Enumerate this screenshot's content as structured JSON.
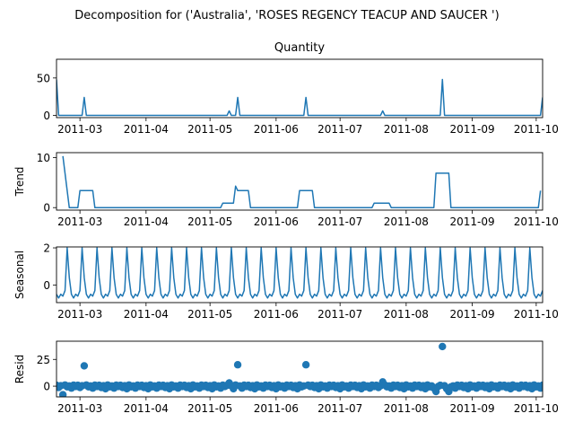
{
  "figure": {
    "suptitle": "Decomposition for ('Australia', 'ROSES REGENCY TEACUP AND SAUCER ')"
  },
  "chart_data": [
    {
      "type": "line",
      "title": "Quantity",
      "ylabel": "",
      "xlim": [
        "2011-02-18",
        "2011-10-04"
      ],
      "ylim": [
        -3,
        75
      ],
      "yticks": [
        0,
        50
      ],
      "xticks": [
        "2011-03-01",
        "2011-04-01",
        "2011-05-01",
        "2011-06-01",
        "2011-07-01",
        "2011-08-01",
        "2011-09-01",
        "2011-10-01"
      ],
      "xtick_labels": [
        "2011-03",
        "2011-04",
        "2011-05",
        "2011-06",
        "2011-07",
        "2011-08",
        "2011-09",
        "2011-10"
      ],
      "color": "#1f77b4",
      "series": [
        {
          "points": [
            [
              "2011-02-18",
              48
            ],
            [
              "2011-02-19",
              0
            ],
            [
              "2011-03-02",
              0
            ],
            [
              "2011-03-03",
              24
            ],
            [
              "2011-03-04",
              0
            ],
            [
              "2011-05-09",
              0
            ],
            [
              "2011-05-10",
              6
            ],
            [
              "2011-05-11",
              0
            ],
            [
              "2011-05-13",
              0
            ],
            [
              "2011-05-14",
              24
            ],
            [
              "2011-05-15",
              0
            ],
            [
              "2011-06-14",
              0
            ],
            [
              "2011-06-15",
              24
            ],
            [
              "2011-06-16",
              0
            ],
            [
              "2011-07-20",
              0
            ],
            [
              "2011-07-21",
              6
            ],
            [
              "2011-07-22",
              0
            ],
            [
              "2011-08-17",
              0
            ],
            [
              "2011-08-18",
              48
            ],
            [
              "2011-08-19",
              0
            ],
            [
              "2011-10-03",
              0
            ],
            [
              "2011-10-04",
              24
            ]
          ]
        }
      ]
    },
    {
      "type": "line",
      "title": "",
      "ylabel": "Trend",
      "xlim": [
        "2011-02-18",
        "2011-10-04"
      ],
      "ylim": [
        -0.5,
        11
      ],
      "yticks": [
        0,
        10
      ],
      "xticks": [
        "2011-03-01",
        "2011-04-01",
        "2011-05-01",
        "2011-06-01",
        "2011-07-01",
        "2011-08-01",
        "2011-09-01",
        "2011-10-01"
      ],
      "xtick_labels": [
        "2011-03",
        "2011-04",
        "2011-05",
        "2011-06",
        "2011-07",
        "2011-08",
        "2011-09",
        "2011-10"
      ],
      "color": "#1f77b4",
      "series": [
        {
          "points": [
            [
              "2011-02-21",
              10.3
            ],
            [
              "2011-02-24",
              0
            ],
            [
              "2011-02-28",
              0
            ],
            [
              "2011-03-01",
              3.4
            ],
            [
              "2011-03-07",
              3.4
            ],
            [
              "2011-03-08",
              0
            ],
            [
              "2011-05-06",
              0
            ],
            [
              "2011-05-07",
              0.9
            ],
            [
              "2011-05-12",
              0.9
            ],
            [
              "2011-05-13",
              4.3
            ],
            [
              "2011-05-14",
              3.4
            ],
            [
              "2011-05-19",
              3.4
            ],
            [
              "2011-05-20",
              0
            ],
            [
              "2011-06-11",
              0
            ],
            [
              "2011-06-12",
              3.4
            ],
            [
              "2011-06-18",
              3.4
            ],
            [
              "2011-06-19",
              0
            ],
            [
              "2011-07-16",
              0
            ],
            [
              "2011-07-17",
              0.9
            ],
            [
              "2011-07-24",
              0.9
            ],
            [
              "2011-07-25",
              0
            ],
            [
              "2011-08-14",
              0
            ],
            [
              "2011-08-15",
              6.9
            ],
            [
              "2011-08-21",
              6.9
            ],
            [
              "2011-08-22",
              0
            ],
            [
              "2011-10-02",
              0
            ],
            [
              "2011-10-03",
              3.4
            ]
          ]
        }
      ]
    },
    {
      "type": "line",
      "title": "",
      "ylabel": "Seasonal",
      "xlim": [
        "2011-02-18",
        "2011-10-04"
      ],
      "ylim": [
        -0.95,
        2.05
      ],
      "yticks": [
        0,
        2
      ],
      "xticks": [
        "2011-03-01",
        "2011-04-01",
        "2011-05-01",
        "2011-06-01",
        "2011-07-01",
        "2011-08-01",
        "2011-09-01",
        "2011-10-01"
      ],
      "xtick_labels": [
        "2011-03",
        "2011-04",
        "2011-05",
        "2011-06",
        "2011-07",
        "2011-08",
        "2011-09",
        "2011-10"
      ],
      "color": "#1f77b4",
      "period_days": 7,
      "start": "2011-02-18",
      "end": "2011-10-04",
      "weekly_pattern": [
        -0.5,
        -0.7,
        -0.5,
        -0.6,
        -0.3,
        2.0,
        0.4
      ]
    },
    {
      "type": "scatter",
      "title": "",
      "ylabel": "Resid",
      "xlim": [
        "2011-02-18",
        "2011-10-04"
      ],
      "ylim": [
        -10,
        42
      ],
      "yticks": [
        0,
        25
      ],
      "xticks": [
        "2011-03-01",
        "2011-04-01",
        "2011-05-01",
        "2011-06-01",
        "2011-07-01",
        "2011-08-01",
        "2011-09-01",
        "2011-10-01"
      ],
      "xtick_labels": [
        "2011-03",
        "2011-04",
        "2011-05",
        "2011-06",
        "2011-07",
        "2011-08",
        "2011-09",
        "2011-10"
      ],
      "color": "#1f77b4",
      "baseline": 0,
      "outliers": [
        [
          "2011-02-21",
          -8
        ],
        [
          "2011-03-03",
          19
        ],
        [
          "2011-05-10",
          3
        ],
        [
          "2011-05-14",
          20
        ],
        [
          "2011-06-15",
          20
        ],
        [
          "2011-07-21",
          4
        ],
        [
          "2011-08-15",
          -5
        ],
        [
          "2011-08-18",
          37
        ],
        [
          "2011-08-21",
          -5
        ]
      ],
      "noise_pattern": [
        0.8,
        -1.2,
        0.4,
        -2.4,
        1.1,
        -0.6,
        0.2,
        -1.8,
        0.9,
        -0.3
      ]
    }
  ]
}
